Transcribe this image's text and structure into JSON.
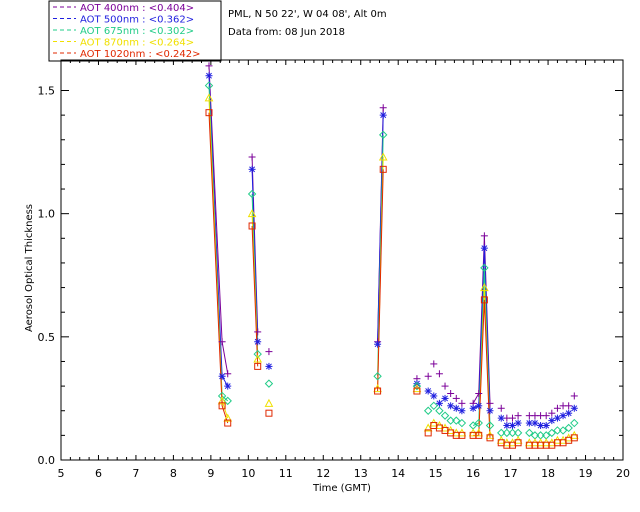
{
  "chart_data": {
    "type": "scatter",
    "xlabel": "Time (GMT)",
    "ylabel": "Aerosol Optical Thickness",
    "xlim": [
      5,
      20
    ],
    "ylim": [
      0.0,
      1.6
    ],
    "xticks": [
      "5",
      "6",
      "7",
      "8",
      "9",
      "10",
      "11",
      "12",
      "13",
      "14",
      "15",
      "16",
      "17",
      "18",
      "19",
      "20"
    ],
    "yticks": [
      "0.0",
      "0.5",
      "1.0",
      "1.5"
    ],
    "grid": false,
    "legend_position": "top-left outside",
    "info_lines": [
      "PML, N 50 22', W 04 08', Alt 0m",
      "Data from: 08 Jun 2018"
    ],
    "series": [
      {
        "name": "AOT  400nm : <0.404>",
        "color": "#7b0099",
        "marker": "plus",
        "x": [
          8.95,
          9.3,
          9.45,
          10.1,
          10.25,
          10.55,
          13.45,
          13.6,
          14.5,
          14.8,
          14.95,
          15.1,
          15.25,
          15.4,
          15.55,
          15.7,
          16.0,
          16.15,
          16.3,
          16.45,
          16.75,
          16.9,
          17.05,
          17.2,
          17.5,
          17.65,
          17.8,
          17.95,
          18.1,
          18.25,
          18.4,
          18.55,
          18.7
        ],
        "y": [
          1.6,
          0.48,
          0.35,
          1.23,
          0.52,
          0.44,
          0.48,
          1.43,
          0.33,
          0.34,
          0.39,
          0.35,
          0.3,
          0.27,
          0.25,
          0.23,
          0.23,
          0.27,
          0.91,
          0.23,
          0.21,
          0.17,
          0.17,
          0.18,
          0.18,
          0.18,
          0.18,
          0.18,
          0.19,
          0.21,
          0.22,
          0.22,
          0.26
        ]
      },
      {
        "name": "AOT  500nm : <0.362>",
        "color": "#1f1fdf",
        "marker": "asterisk",
        "x": [
          8.95,
          9.3,
          9.45,
          10.1,
          10.25,
          10.55,
          13.45,
          13.6,
          14.5,
          14.8,
          14.95,
          15.1,
          15.25,
          15.4,
          15.55,
          15.7,
          16.0,
          16.15,
          16.3,
          16.45,
          16.75,
          16.9,
          17.05,
          17.2,
          17.5,
          17.65,
          17.8,
          17.95,
          18.1,
          18.25,
          18.4,
          18.55,
          18.7
        ],
        "y": [
          1.56,
          0.34,
          0.3,
          1.18,
          0.48,
          0.38,
          0.47,
          1.4,
          0.31,
          0.28,
          0.26,
          0.23,
          0.25,
          0.22,
          0.21,
          0.2,
          0.21,
          0.22,
          0.86,
          0.2,
          0.17,
          0.14,
          0.14,
          0.15,
          0.15,
          0.15,
          0.14,
          0.14,
          0.16,
          0.17,
          0.18,
          0.19,
          0.21
        ]
      },
      {
        "name": "AOT  675nm : <0.302>",
        "color": "#22cc88",
        "marker": "diamond",
        "x": [
          8.95,
          9.3,
          9.45,
          10.1,
          10.25,
          10.55,
          13.45,
          13.6,
          14.5,
          14.8,
          14.95,
          15.1,
          15.25,
          15.4,
          15.55,
          15.7,
          16.0,
          16.15,
          16.3,
          16.45,
          16.75,
          16.9,
          17.05,
          17.2,
          17.5,
          17.65,
          17.8,
          17.95,
          18.1,
          18.25,
          18.4,
          18.55,
          18.7
        ],
        "y": [
          1.52,
          0.26,
          0.24,
          1.08,
          0.43,
          0.31,
          0.34,
          1.32,
          0.3,
          0.2,
          0.22,
          0.2,
          0.18,
          0.16,
          0.16,
          0.15,
          0.14,
          0.15,
          0.78,
          0.14,
          0.11,
          0.11,
          0.11,
          0.11,
          0.11,
          0.1,
          0.1,
          0.1,
          0.11,
          0.12,
          0.12,
          0.13,
          0.15
        ]
      },
      {
        "name": "AOT  870nm : <0.264>",
        "color": "#f0e000",
        "marker": "triangle",
        "x": [
          8.95,
          9.3,
          9.45,
          10.1,
          10.25,
          10.55,
          13.45,
          13.6,
          14.5,
          14.8,
          14.95,
          15.1,
          15.25,
          15.4,
          15.55,
          15.7,
          16.0,
          16.15,
          16.3,
          16.45,
          16.75,
          16.9,
          17.05,
          17.2,
          17.5,
          17.65,
          17.8,
          17.95,
          18.1,
          18.25,
          18.4,
          18.55,
          18.7
        ],
        "y": [
          1.47,
          0.24,
          0.17,
          1.0,
          0.41,
          0.23,
          0.29,
          1.23,
          0.29,
          0.13,
          0.15,
          0.14,
          0.13,
          0.12,
          0.11,
          0.11,
          0.11,
          0.11,
          0.7,
          0.1,
          0.08,
          0.07,
          0.07,
          0.08,
          0.07,
          0.07,
          0.07,
          0.07,
          0.07,
          0.08,
          0.08,
          0.09,
          0.1
        ]
      },
      {
        "name": "AOT 1020nm : <0.242>",
        "color": "#e02800",
        "marker": "square",
        "x": [
          8.95,
          9.3,
          9.45,
          10.1,
          10.25,
          10.55,
          13.45,
          13.6,
          14.5,
          14.8,
          14.95,
          15.1,
          15.25,
          15.4,
          15.55,
          15.7,
          16.0,
          16.15,
          16.3,
          16.45,
          16.75,
          16.9,
          17.05,
          17.2,
          17.5,
          17.65,
          17.8,
          17.95,
          18.1,
          18.25,
          18.4,
          18.55,
          18.7
        ],
        "y": [
          1.41,
          0.22,
          0.15,
          0.95,
          0.38,
          0.19,
          0.28,
          1.18,
          0.28,
          0.11,
          0.14,
          0.13,
          0.12,
          0.11,
          0.1,
          0.1,
          0.1,
          0.1,
          0.65,
          0.09,
          0.07,
          0.06,
          0.06,
          0.07,
          0.06,
          0.06,
          0.06,
          0.06,
          0.06,
          0.07,
          0.07,
          0.08,
          0.09
        ]
      }
    ],
    "segments": [
      [
        0,
        2
      ],
      [
        3,
        4
      ],
      [
        6,
        7
      ],
      [
        16,
        19
      ]
    ]
  }
}
